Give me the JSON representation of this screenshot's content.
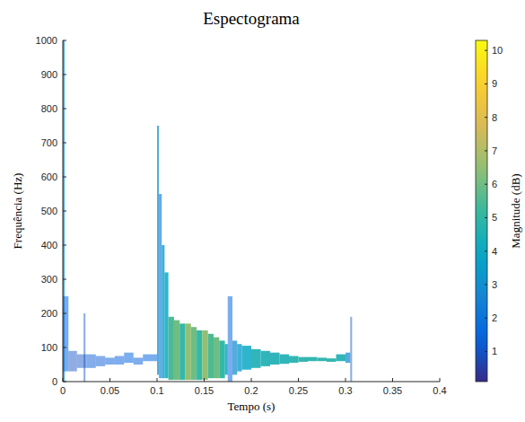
{
  "chart_data": {
    "type": "heatmap",
    "title": "Espectograma",
    "x_label": "Tempo (s)",
    "y_label": "Frequência (Hz)",
    "color_label": "Magnitude (dB)",
    "xlim": [
      0,
      0.4
    ],
    "xticks": [
      0,
      0.05,
      0.1,
      0.15,
      0.2,
      0.25,
      0.3,
      0.35,
      0.4
    ],
    "ylim": [
      0,
      1000
    ],
    "yticks": [
      0,
      100,
      200,
      300,
      400,
      500,
      600,
      700,
      800,
      900,
      1000
    ],
    "color_range": [
      0.1,
      10.3
    ],
    "color_ticks": [
      1,
      2,
      3,
      4,
      5,
      6,
      7,
      8,
      9,
      10
    ],
    "cells": [
      {
        "t0": 0,
        "t1": 0.002,
        "f0": 0,
        "f1": 1000,
        "value": 3
      },
      {
        "t0": 0,
        "t1": 0.006,
        "f0": 30,
        "f1": 250,
        "value": 1.5
      },
      {
        "t0": 0.006,
        "t1": 0.015,
        "f0": 30,
        "f1": 90,
        "value": 1
      },
      {
        "t0": 0.015,
        "t1": 0.025,
        "f0": 40,
        "f1": 80,
        "value": 1
      },
      {
        "t0": 0.022,
        "t1": 0.024,
        "f0": 0,
        "f1": 200,
        "value": 1
      },
      {
        "t0": 0.025,
        "t1": 0.035,
        "f0": 40,
        "f1": 80,
        "value": 1.2
      },
      {
        "t0": 0.035,
        "t1": 0.045,
        "f0": 45,
        "f1": 75,
        "value": 1.2
      },
      {
        "t0": 0.045,
        "t1": 0.055,
        "f0": 50,
        "f1": 70,
        "value": 1.3
      },
      {
        "t0": 0.055,
        "t1": 0.065,
        "f0": 50,
        "f1": 75,
        "value": 1.3
      },
      {
        "t0": 0.065,
        "t1": 0.075,
        "f0": 55,
        "f1": 85,
        "value": 1.4
      },
      {
        "t0": 0.075,
        "t1": 0.085,
        "f0": 50,
        "f1": 70,
        "value": 1.3
      },
      {
        "t0": 0.085,
        "t1": 0.1,
        "f0": 60,
        "f1": 80,
        "value": 1.5
      },
      {
        "t0": 0.1,
        "t1": 0.102,
        "f0": 20,
        "f1": 750,
        "value": 3
      },
      {
        "t0": 0.102,
        "t1": 0.105,
        "f0": 10,
        "f1": 550,
        "value": 2.5
      },
      {
        "t0": 0.105,
        "t1": 0.108,
        "f0": 10,
        "f1": 400,
        "value": 3.5
      },
      {
        "t0": 0.108,
        "t1": 0.112,
        "f0": 10,
        "f1": 320,
        "value": 4
      },
      {
        "t0": 0.112,
        "t1": 0.118,
        "f0": 5,
        "f1": 190,
        "value": 5.5
      },
      {
        "t0": 0.118,
        "t1": 0.124,
        "f0": 5,
        "f1": 180,
        "value": 6
      },
      {
        "t0": 0.124,
        "t1": 0.13,
        "f0": 5,
        "f1": 170,
        "value": 5
      },
      {
        "t0": 0.13,
        "t1": 0.136,
        "f0": 5,
        "f1": 170,
        "value": 6.5
      },
      {
        "t0": 0.136,
        "t1": 0.142,
        "f0": 5,
        "f1": 160,
        "value": 6
      },
      {
        "t0": 0.142,
        "t1": 0.148,
        "f0": 5,
        "f1": 150,
        "value": 5
      },
      {
        "t0": 0.148,
        "t1": 0.154,
        "f0": 5,
        "f1": 150,
        "value": 6.5
      },
      {
        "t0": 0.154,
        "t1": 0.16,
        "f0": 10,
        "f1": 140,
        "value": 5.5
      },
      {
        "t0": 0.16,
        "t1": 0.166,
        "f0": 10,
        "f1": 130,
        "value": 6
      },
      {
        "t0": 0.166,
        "t1": 0.172,
        "f0": 10,
        "f1": 120,
        "value": 5
      },
      {
        "t0": 0.172,
        "t1": 0.175,
        "f0": 20,
        "f1": 110,
        "value": 4
      },
      {
        "t0": 0.175,
        "t1": 0.18,
        "f0": 0,
        "f1": 250,
        "value": 1.5
      },
      {
        "t0": 0.18,
        "t1": 0.185,
        "f0": 20,
        "f1": 120,
        "value": 3
      },
      {
        "t0": 0.185,
        "t1": 0.19,
        "f0": 30,
        "f1": 110,
        "value": 3.5
      },
      {
        "t0": 0.19,
        "t1": 0.2,
        "f0": 35,
        "f1": 105,
        "value": 4
      },
      {
        "t0": 0.2,
        "t1": 0.21,
        "f0": 40,
        "f1": 95,
        "value": 4.5
      },
      {
        "t0": 0.21,
        "t1": 0.22,
        "f0": 45,
        "f1": 90,
        "value": 4.5
      },
      {
        "t0": 0.22,
        "t1": 0.23,
        "f0": 50,
        "f1": 85,
        "value": 4.5
      },
      {
        "t0": 0.23,
        "t1": 0.24,
        "f0": 52,
        "f1": 80,
        "value": 4.5
      },
      {
        "t0": 0.24,
        "t1": 0.25,
        "f0": 55,
        "f1": 75,
        "value": 4.7
      },
      {
        "t0": 0.25,
        "t1": 0.26,
        "f0": 58,
        "f1": 72,
        "value": 4.8
      },
      {
        "t0": 0.26,
        "t1": 0.27,
        "f0": 60,
        "f1": 72,
        "value": 4.8
      },
      {
        "t0": 0.27,
        "t1": 0.28,
        "f0": 60,
        "f1": 70,
        "value": 4.8
      },
      {
        "t0": 0.28,
        "t1": 0.29,
        "f0": 58,
        "f1": 68,
        "value": 4.8
      },
      {
        "t0": 0.29,
        "t1": 0.3,
        "f0": 60,
        "f1": 80,
        "value": 4.5
      },
      {
        "t0": 0.3,
        "t1": 0.305,
        "f0": 55,
        "f1": 85,
        "value": 3
      },
      {
        "t0": 0.305,
        "t1": 0.307,
        "f0": 0,
        "f1": 190,
        "value": 1
      }
    ]
  }
}
